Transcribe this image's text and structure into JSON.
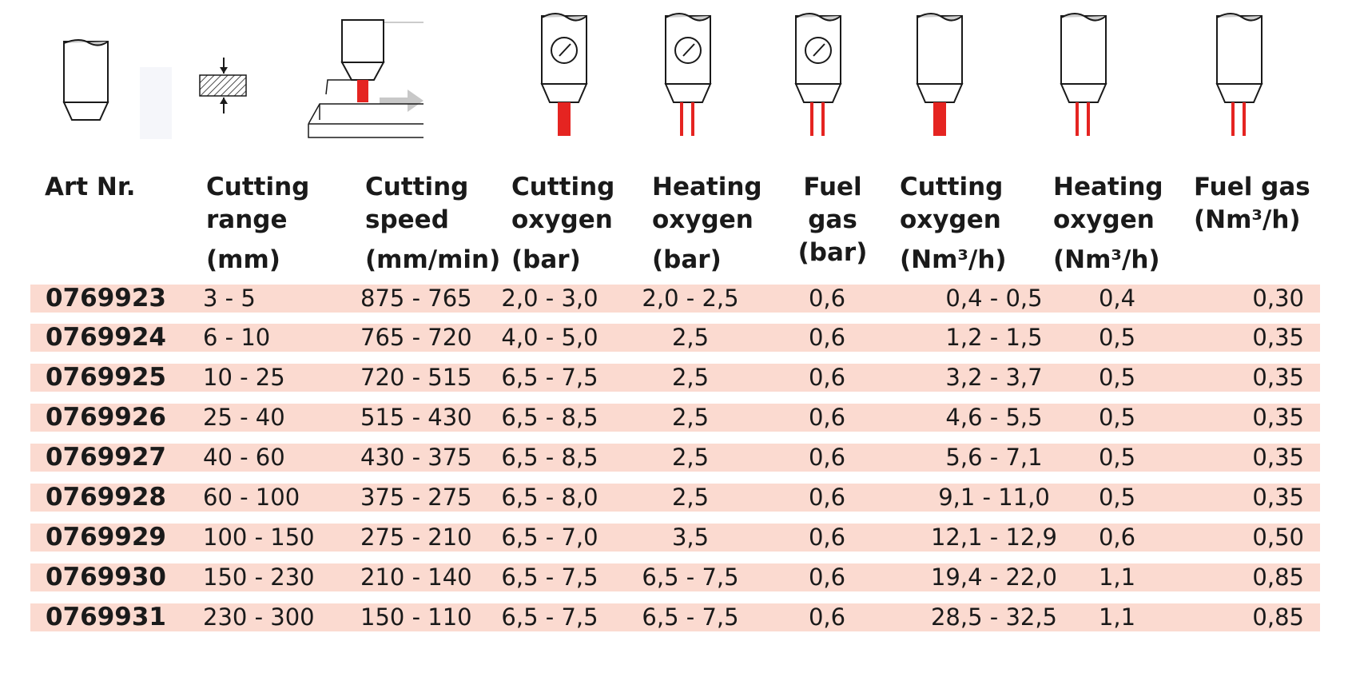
{
  "icons": [
    "torch-tip-icon",
    "plate-thickness-icon",
    "cutting-speed-icon",
    "cutting-oxygen-gauge-icon",
    "heating-oxygen-gauge-icon",
    "fuel-gas-gauge-icon",
    "cutting-oxygen-flow-icon",
    "heating-oxygen-flow-icon",
    "fuel-gas-flow-icon"
  ],
  "colors": {
    "flame_red": "#e52421",
    "row_bg": "#fbdad0",
    "text": "#1a1a1a",
    "arrow_grey": "#c8c8c8"
  },
  "headers": {
    "art": {
      "l1": "Art Nr."
    },
    "range": {
      "l1": "Cutting",
      "l2": "range",
      "l3": "(mm)"
    },
    "speed": {
      "l1": "Cutting",
      "l2": "speed",
      "l3": "(mm/min)"
    },
    "co_bar": {
      "l1": "Cutting",
      "l2": "oxygen",
      "l3": "(bar)"
    },
    "ho_bar": {
      "l1": "Heating",
      "l2": "oxygen",
      "l3": "(bar)"
    },
    "fg_bar": {
      "l1": "Fuel gas",
      "l2": "(bar)"
    },
    "co_flow": {
      "l1": "Cutting",
      "l2": "oxygen",
      "l3": "(Nm³/h)"
    },
    "ho_flow": {
      "l1": "Heating",
      "l2": "oxygen",
      "l3": "(Nm³/h)"
    },
    "fg_flow": {
      "l1": "Fuel gas",
      "l2": "(Nm³/h)"
    }
  },
  "rows": [
    [
      "0769923",
      "3 - 5",
      "875 - 765",
      "2,0 - 3,0",
      "2,0 - 2,5",
      "0,6",
      "0,4 - 0,5",
      "0,4",
      "0,30"
    ],
    [
      "0769924",
      "6 - 10",
      "765 - 720",
      "4,0 - 5,0",
      "2,5",
      "0,6",
      "1,2 - 1,5",
      "0,5",
      "0,35"
    ],
    [
      "0769925",
      "10 - 25",
      "720 - 515",
      "6,5 - 7,5",
      "2,5",
      "0,6",
      "3,2 - 3,7",
      "0,5",
      "0,35"
    ],
    [
      "0769926",
      "25 - 40",
      "515 - 430",
      "6,5 - 8,5",
      "2,5",
      "0,6",
      "4,6 - 5,5",
      "0,5",
      "0,35"
    ],
    [
      "0769927",
      "40 - 60",
      "430 - 375",
      "6,5 - 8,5",
      "2,5",
      "0,6",
      "5,6 - 7,1",
      "0,5",
      "0,35"
    ],
    [
      "0769928",
      "60 - 100",
      "375 - 275",
      "6,5 - 8,0",
      "2,5",
      "0,6",
      "9,1 - 11,0",
      "0,5",
      "0,35"
    ],
    [
      "0769929",
      "100 - 150",
      "275 - 210",
      "6,5 - 7,0",
      "3,5",
      "0,6",
      "12,1 - 12,9",
      "0,6",
      "0,50"
    ],
    [
      "0769930",
      "150 - 230",
      "210 - 140",
      "6,5 - 7,5",
      "6,5 - 7,5",
      "0,6",
      "19,4 - 22,0",
      "1,1",
      "0,85"
    ],
    [
      "0769931",
      "230 - 300",
      "150 - 110",
      "6,5 - 7,5",
      "6,5 - 7,5",
      "0,6",
      "28,5 - 32,5",
      "1,1",
      "0,85"
    ]
  ]
}
